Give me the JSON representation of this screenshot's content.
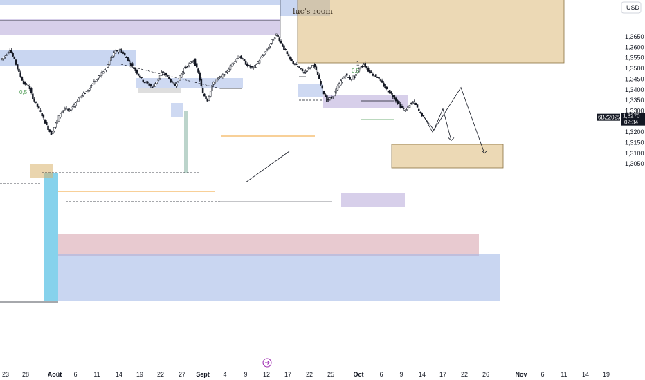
{
  "currency": "USD",
  "watermark": "luc's room",
  "ticker": {
    "symbol": "6BZ2025",
    "price": "1,3270",
    "countdown": "02:34",
    "value": 1.327
  },
  "colors": {
    "bull_candle": "#ffffff",
    "bear_candle": "#131722",
    "zone_blue": "#9db4e6",
    "zone_gold": "#d9b36b",
    "zone_purple": "#b7a8d9",
    "zone_red": "#d9a7b0",
    "zone_cyan": "#5ec3e6",
    "orange_line": "#f0a030",
    "green_text": "#4a9a50",
    "price_tag": "#131722"
  },
  "chart_data": {
    "type": "candlestick",
    "y_axis": {
      "min": 1.303,
      "max": 1.372,
      "ticks": [
        1.365,
        1.36,
        1.355,
        1.35,
        1.345,
        1.34,
        1.335,
        1.33,
        1.325,
        1.32,
        1.315,
        1.31,
        1.305
      ],
      "tick_labels": [
        "1,3650",
        "1,3600",
        "1,3550",
        "1,3500",
        "1,3450",
        "1,3400",
        "1,3350",
        "1,3300",
        "1,3250",
        "1,3200",
        "1,3150",
        "1,3100",
        "1,3050"
      ]
    },
    "x_axis": {
      "labels": [
        {
          "text": "23",
          "bold": false
        },
        {
          "text": "28",
          "bold": false
        },
        {
          "text": "Août",
          "bold": true
        },
        {
          "text": "6",
          "bold": false
        },
        {
          "text": "11",
          "bold": false
        },
        {
          "text": "14",
          "bold": false
        },
        {
          "text": "19",
          "bold": false
        },
        {
          "text": "22",
          "bold": false
        },
        {
          "text": "27",
          "bold": false
        },
        {
          "text": "Sept",
          "bold": true
        },
        {
          "text": "4",
          "bold": false
        },
        {
          "text": "9",
          "bold": false
        },
        {
          "text": "12",
          "bold": false
        },
        {
          "text": "17",
          "bold": false
        },
        {
          "text": "22",
          "bold": false
        },
        {
          "text": "25",
          "bold": false
        },
        {
          "text": "Oct",
          "bold": true
        },
        {
          "text": "6",
          "bold": false
        },
        {
          "text": "9",
          "bold": false
        },
        {
          "text": "14",
          "bold": false
        },
        {
          "text": "17",
          "bold": false
        },
        {
          "text": "22",
          "bold": false
        },
        {
          "text": "26",
          "bold": false
        },
        {
          "text": "Nov",
          "bold": true
        },
        {
          "text": "6",
          "bold": false
        },
        {
          "text": "11",
          "bold": false
        },
        {
          "text": "14",
          "bold": false
        },
        {
          "text": "19",
          "bold": false
        }
      ]
    },
    "price_path": [
      1.354,
      1.356,
      1.359,
      1.354,
      1.348,
      1.343,
      1.342,
      1.336,
      1.332,
      1.328,
      1.323,
      1.319,
      1.324,
      1.329,
      1.331,
      1.33,
      1.333,
      1.336,
      1.338,
      1.34,
      1.343,
      1.345,
      1.348,
      1.35,
      1.355,
      1.358,
      1.359,
      1.356,
      1.353,
      1.35,
      1.347,
      1.344,
      1.343,
      1.341,
      1.344,
      1.348,
      1.347,
      1.344,
      1.342,
      1.346,
      1.35,
      1.352,
      1.354,
      1.348,
      1.338,
      1.335,
      1.342,
      1.345,
      1.346,
      1.348,
      1.351,
      1.354,
      1.356,
      1.353,
      1.351,
      1.35,
      1.353,
      1.356,
      1.359,
      1.363,
      1.366,
      1.362,
      1.358,
      1.354,
      1.352,
      1.35,
      1.348,
      1.35,
      1.352,
      1.347,
      1.34,
      1.335,
      1.336,
      1.34,
      1.344,
      1.347,
      1.345,
      1.346,
      1.35,
      1.352,
      1.349,
      1.347,
      1.346,
      1.343,
      1.34,
      1.338,
      1.335,
      1.332,
      1.33,
      1.333,
      1.334,
      1.33,
      1.327
    ],
    "annotations": [
      {
        "text": "0,5",
        "price": 1.339
      },
      {
        "text": "0,5",
        "price": 1.349
      },
      {
        "text": "1",
        "price": 1.3525
      }
    ],
    "projection": [
      [
        1.327,
        1.321,
        1.331,
        1.316
      ],
      [
        1.327,
        1.32,
        1.341,
        1.31
      ]
    ]
  }
}
